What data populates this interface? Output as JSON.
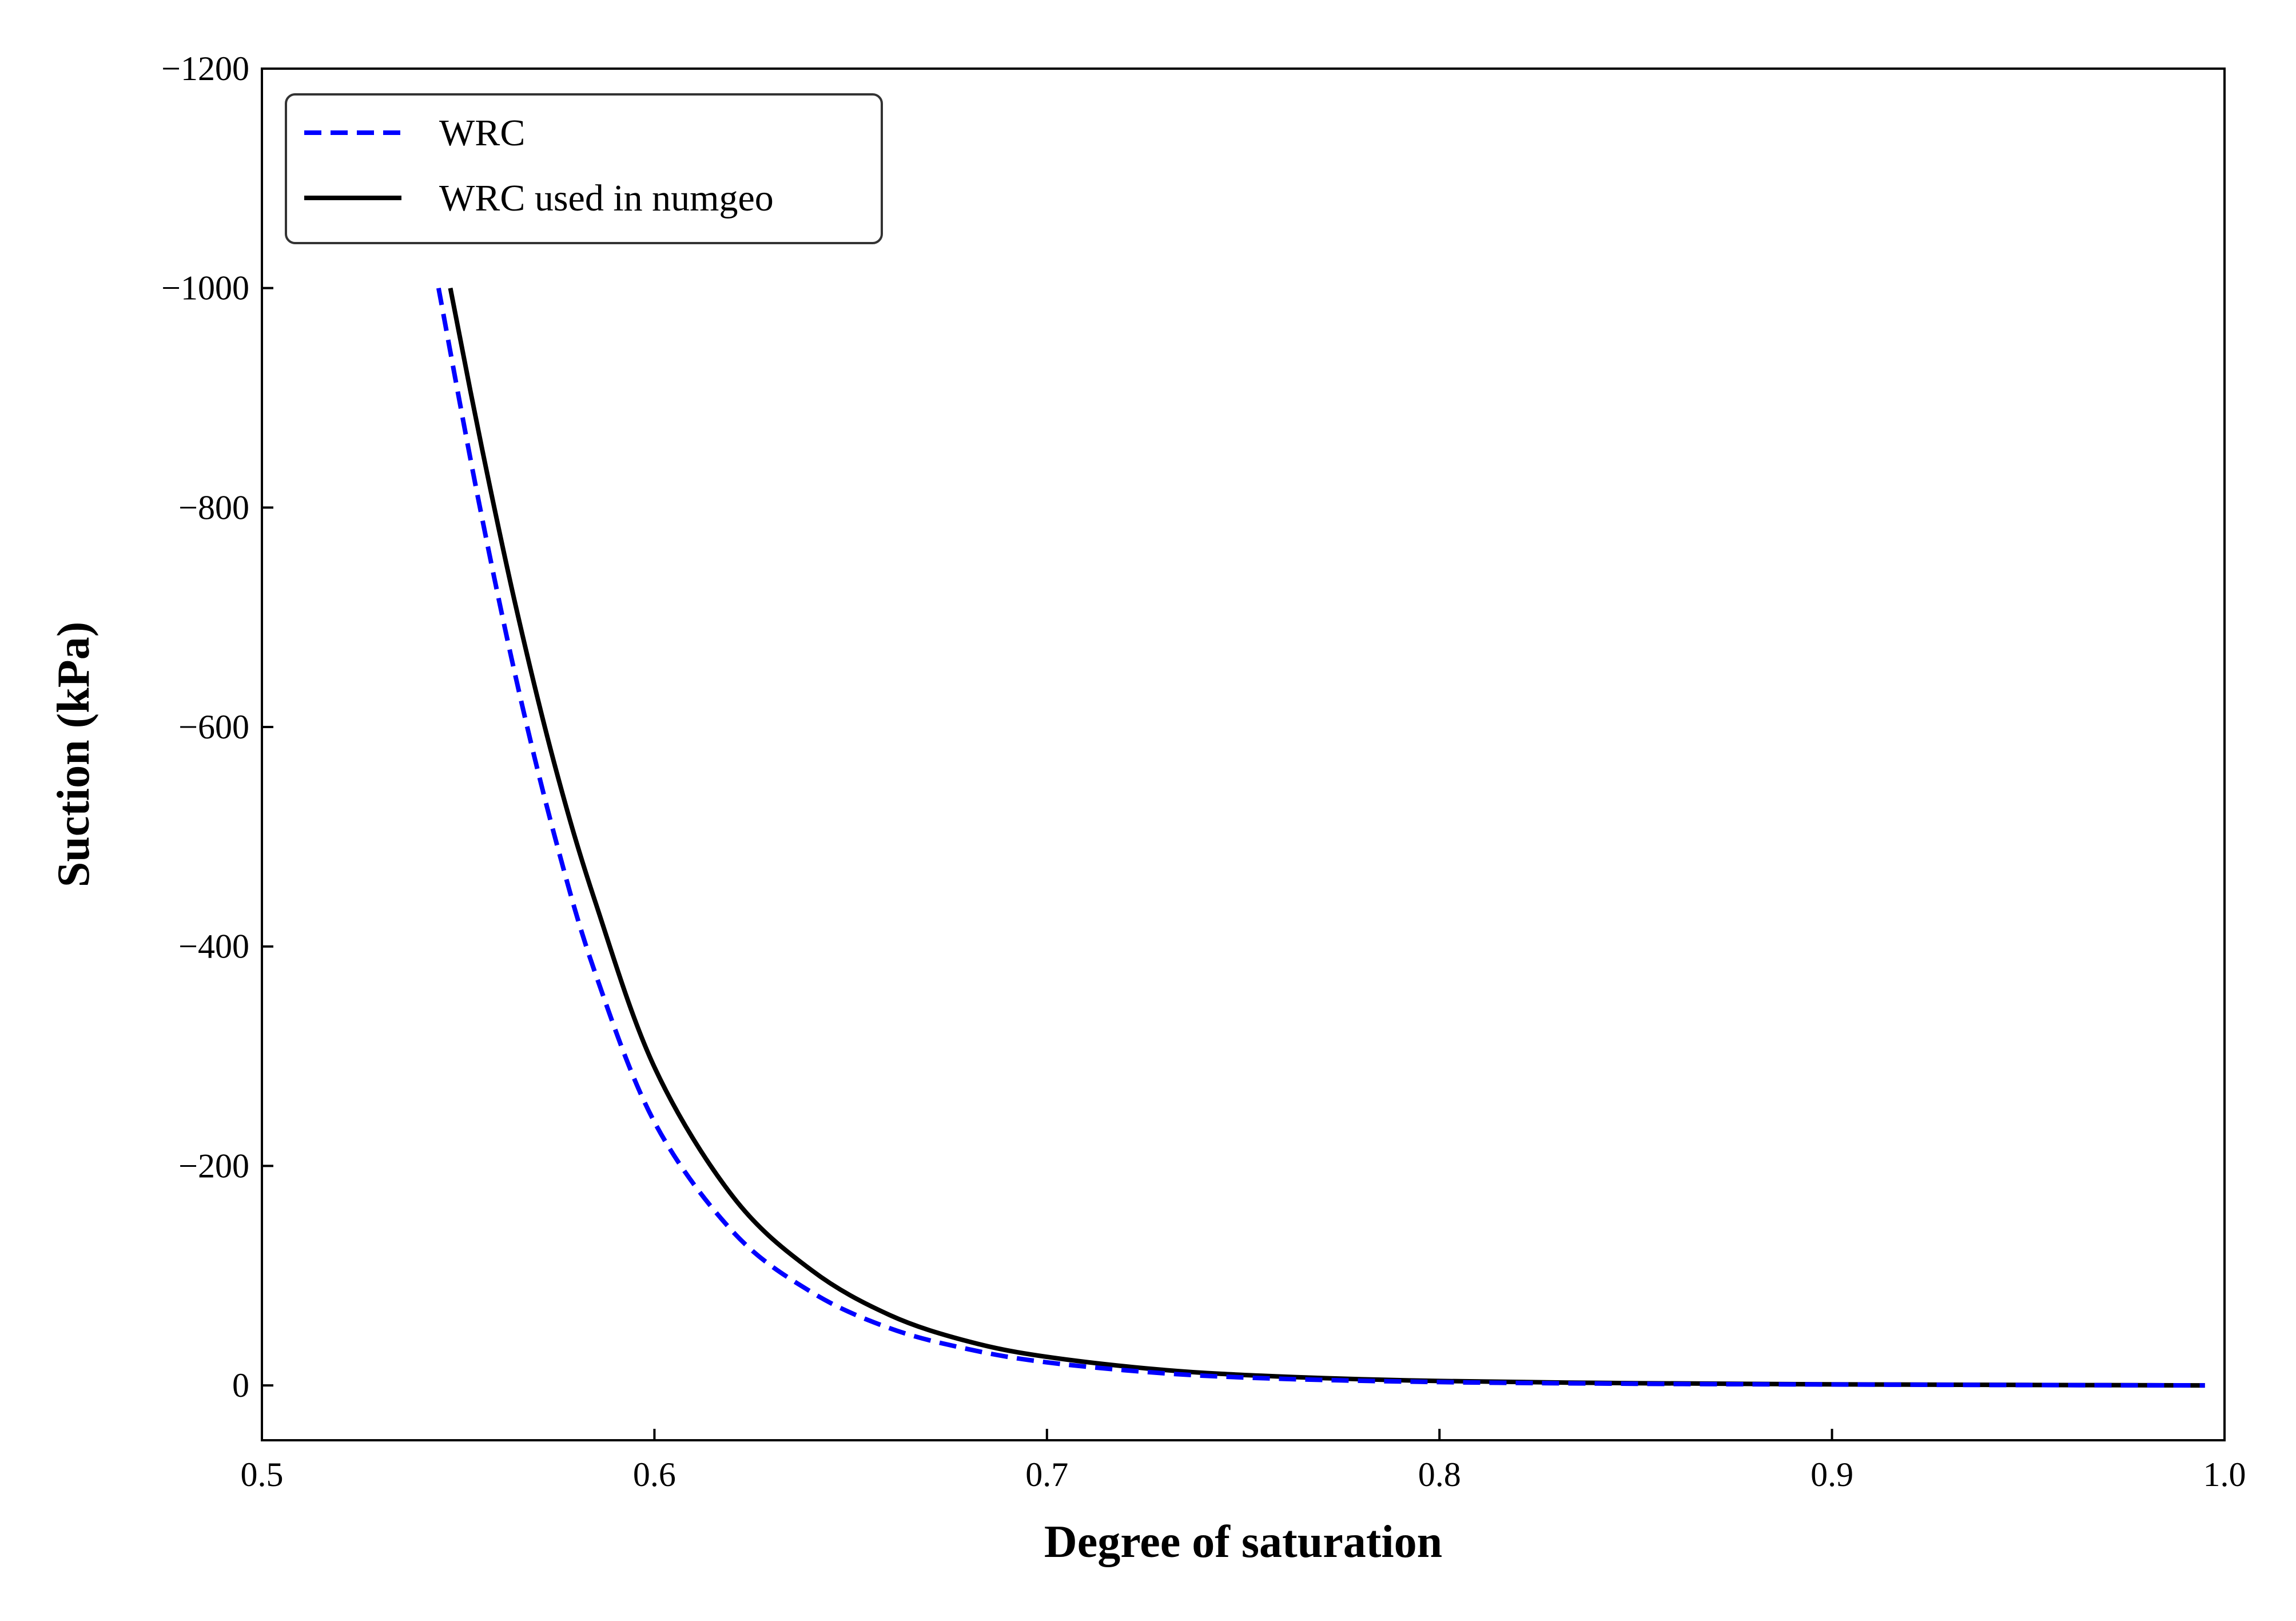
{
  "chart_data": {
    "type": "line",
    "xlabel": "Degree of saturation",
    "ylabel": "Suction (kPa)",
    "xlim": [
      0.5,
      1.0
    ],
    "ylim": [
      50,
      -1200
    ],
    "y_axis_inverted": true,
    "x_ticks": [
      0.5,
      0.6,
      0.7,
      0.8,
      0.9,
      1.0
    ],
    "x_tick_labels": [
      "0.5",
      "0.6",
      "0.7",
      "0.8",
      "0.9",
      "1.0"
    ],
    "y_ticks": [
      0,
      -200,
      -400,
      -600,
      -800,
      -1000,
      -1200
    ],
    "y_tick_labels": [
      "0",
      "−200",
      "−400",
      "−600",
      "−800",
      "−1000",
      "−1200"
    ],
    "grid": false,
    "legend_position": "top-left",
    "series": [
      {
        "name": "WRC",
        "color": "#0000ff",
        "style": "dashed",
        "x": [
          0.545,
          0.555,
          0.565,
          0.575,
          0.585,
          0.6,
          0.62,
          0.64,
          0.66,
          0.68,
          0.7,
          0.73,
          0.76,
          0.8,
          0.85,
          0.9,
          0.95,
          0.995
        ],
        "y": [
          -1000,
          -810,
          -640,
          -495,
          -375,
          -240,
          -140,
          -85,
          -52,
          -33,
          -21,
          -11,
          -6,
          -3,
          -1.5,
          -0.8,
          -0.3,
          0
        ]
      },
      {
        "name": "WRC used in numgeo",
        "color": "#000000",
        "style": "solid",
        "x": [
          0.548,
          0.556,
          0.565,
          0.575,
          0.585,
          0.6,
          0.62,
          0.64,
          0.66,
          0.68,
          0.7,
          0.73,
          0.76,
          0.8,
          0.85,
          0.9,
          0.95,
          0.995
        ],
        "y": [
          -1000,
          -855,
          -705,
          -560,
          -440,
          -290,
          -172,
          -105,
          -64,
          -40,
          -26,
          -14,
          -8,
          -4,
          -2,
          -1,
          -0.4,
          0
        ]
      }
    ]
  }
}
